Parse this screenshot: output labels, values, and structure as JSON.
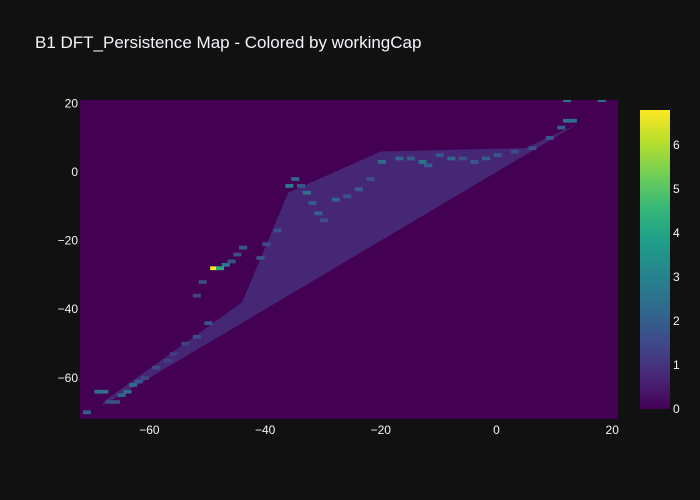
{
  "chart_data": {
    "type": "heatmap",
    "title": "B1 DFT_Persistence Map - Colored by workingCap",
    "xlabel": "",
    "ylabel": "",
    "xlim": [
      -72,
      21
    ],
    "ylim": [
      -72,
      21
    ],
    "x_ticks": [
      -60,
      -40,
      -20,
      0,
      20
    ],
    "y_ticks": [
      20,
      0,
      -20,
      -40,
      -60
    ],
    "x_tick_labels": [
      "−60",
      "−40",
      "−20",
      "0",
      "20"
    ],
    "y_tick_labels": [
      "20",
      "0",
      "−20",
      "−40",
      "−60"
    ],
    "colorscale": "Viridis",
    "color_range": [
      0,
      6.8
    ],
    "colorbar_ticks": [
      0,
      1,
      2,
      3,
      4,
      5,
      6
    ],
    "colorbar_tick_labels": [
      "0",
      "1",
      "2",
      "3",
      "4",
      "5",
      "6"
    ],
    "background_value": 0,
    "cells": [
      {
        "x": -71,
        "y": -70,
        "v": 2.0
      },
      {
        "x": -69,
        "y": -64,
        "v": 2.5
      },
      {
        "x": -68,
        "y": -64,
        "v": 2.5
      },
      {
        "x": -67,
        "y": -67,
        "v": 1.6
      },
      {
        "x": -66,
        "y": -67,
        "v": 1.6
      },
      {
        "x": -65,
        "y": -65,
        "v": 2.2
      },
      {
        "x": -64,
        "y": -64,
        "v": 2.4
      },
      {
        "x": -63,
        "y": -62,
        "v": 2.4
      },
      {
        "x": -62,
        "y": -61,
        "v": 1.8
      },
      {
        "x": -61,
        "y": -60,
        "v": 1.4
      },
      {
        "x": -59,
        "y": -57,
        "v": 1.5
      },
      {
        "x": -57,
        "y": -55,
        "v": 1.3
      },
      {
        "x": -56,
        "y": -53,
        "v": 1.2
      },
      {
        "x": -54,
        "y": -50,
        "v": 1.3
      },
      {
        "x": -52,
        "y": -48,
        "v": 1.5
      },
      {
        "x": -50,
        "y": -44,
        "v": 1.8
      },
      {
        "x": -52,
        "y": -36,
        "v": 1.4
      },
      {
        "x": -51,
        "y": -32,
        "v": 1.5
      },
      {
        "x": -49,
        "y": -28,
        "v": 6.8
      },
      {
        "x": -48,
        "y": -28,
        "v": 4.2
      },
      {
        "x": -47,
        "y": -27,
        "v": 2.8
      },
      {
        "x": -46,
        "y": -26,
        "v": 1.7
      },
      {
        "x": -45,
        "y": -24,
        "v": 1.6
      },
      {
        "x": -44,
        "y": -22,
        "v": 1.8
      },
      {
        "x": -41,
        "y": -25,
        "v": 1.8
      },
      {
        "x": -40,
        "y": -21,
        "v": 1.5
      },
      {
        "x": -38,
        "y": -17,
        "v": 1.7
      },
      {
        "x": -36,
        "y": -4,
        "v": 2.8
      },
      {
        "x": -35,
        "y": -2,
        "v": 2.2
      },
      {
        "x": -34,
        "y": -4,
        "v": 1.8
      },
      {
        "x": -33,
        "y": -6,
        "v": 2.6
      },
      {
        "x": -32,
        "y": -9,
        "v": 1.9
      },
      {
        "x": -31,
        "y": -12,
        "v": 2.1
      },
      {
        "x": -30,
        "y": -14,
        "v": 1.6
      },
      {
        "x": -28,
        "y": -8,
        "v": 2.2
      },
      {
        "x": -26,
        "y": -7,
        "v": 1.8
      },
      {
        "x": -24,
        "y": -5,
        "v": 2.0
      },
      {
        "x": -22,
        "y": -2,
        "v": 1.6
      },
      {
        "x": -20,
        "y": 3,
        "v": 2.4
      },
      {
        "x": -17,
        "y": 4,
        "v": 2.2
      },
      {
        "x": -15,
        "y": 4,
        "v": 1.9
      },
      {
        "x": -13,
        "y": 3,
        "v": 2.6
      },
      {
        "x": -12,
        "y": 2,
        "v": 2.0
      },
      {
        "x": -10,
        "y": 5,
        "v": 1.8
      },
      {
        "x": -8,
        "y": 4,
        "v": 2.2
      },
      {
        "x": -6,
        "y": 4,
        "v": 1.7
      },
      {
        "x": -4,
        "y": 3,
        "v": 1.9
      },
      {
        "x": -2,
        "y": 4,
        "v": 2.0
      },
      {
        "x": 0,
        "y": 5,
        "v": 1.8
      },
      {
        "x": 3,
        "y": 6,
        "v": 1.6
      },
      {
        "x": 6,
        "y": 7,
        "v": 1.7
      },
      {
        "x": 9,
        "y": 10,
        "v": 1.8
      },
      {
        "x": 11,
        "y": 13,
        "v": 2.0
      },
      {
        "x": 12,
        "y": 15,
        "v": 2.6
      },
      {
        "x": 13,
        "y": 15,
        "v": 2.4
      },
      {
        "x": 12,
        "y": 21,
        "v": 2.4
      },
      {
        "x": 18,
        "y": 21,
        "v": 2.4
      }
    ]
  }
}
